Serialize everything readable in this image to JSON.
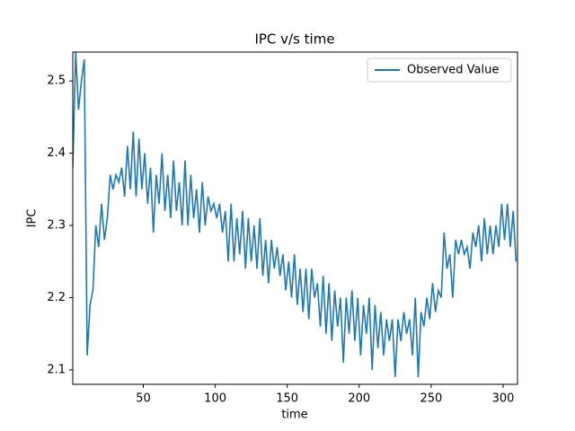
{
  "chart_data": {
    "type": "line",
    "title": "IPC v/s time",
    "x_label": "time",
    "y_label": "IPC",
    "x": [
      1,
      3,
      5,
      7,
      9,
      11,
      13,
      15,
      17,
      19,
      21,
      23,
      25,
      27,
      29,
      31,
      33,
      35,
      37,
      39,
      41,
      43,
      45,
      47,
      49,
      51,
      53,
      55,
      57,
      59,
      61,
      63,
      65,
      67,
      69,
      71,
      73,
      75,
      77,
      79,
      81,
      83,
      85,
      87,
      89,
      91,
      93,
      95,
      97,
      99,
      101,
      103,
      105,
      107,
      109,
      111,
      113,
      115,
      117,
      119,
      121,
      123,
      125,
      127,
      129,
      131,
      133,
      135,
      137,
      139,
      141,
      143,
      145,
      147,
      149,
      151,
      153,
      155,
      157,
      159,
      161,
      163,
      165,
      167,
      169,
      171,
      173,
      175,
      177,
      179,
      181,
      183,
      185,
      187,
      189,
      191,
      193,
      195,
      197,
      199,
      201,
      203,
      205,
      207,
      209,
      211,
      213,
      215,
      217,
      219,
      221,
      223,
      225,
      227,
      229,
      231,
      233,
      235,
      237,
      239,
      241,
      243,
      245,
      247,
      249,
      251,
      253,
      255,
      257,
      259,
      261,
      263,
      265,
      267,
      269,
      271,
      273,
      275,
      277,
      279,
      281,
      283,
      285,
      287,
      289,
      291,
      293,
      295,
      297,
      299,
      301,
      303,
      305,
      307,
      309
    ],
    "series": [
      {
        "name": "Observed Value",
        "color": "#1f77b4",
        "values": [
          2.38,
          2.54,
          2.46,
          2.5,
          2.53,
          2.12,
          2.19,
          2.21,
          2.3,
          2.27,
          2.33,
          2.28,
          2.31,
          2.37,
          2.35,
          2.37,
          2.36,
          2.38,
          2.34,
          2.41,
          2.35,
          2.43,
          2.34,
          2.42,
          2.35,
          2.4,
          2.33,
          2.38,
          2.29,
          2.37,
          2.33,
          2.4,
          2.32,
          2.37,
          2.31,
          2.39,
          2.32,
          2.36,
          2.3,
          2.39,
          2.3,
          2.37,
          2.31,
          2.35,
          2.29,
          2.36,
          2.3,
          2.34,
          2.32,
          2.33,
          2.31,
          2.33,
          2.29,
          2.32,
          2.25,
          2.33,
          2.25,
          2.31,
          2.26,
          2.32,
          2.24,
          2.31,
          2.25,
          2.3,
          2.24,
          2.31,
          2.23,
          2.28,
          2.22,
          2.28,
          2.24,
          2.27,
          2.23,
          2.26,
          2.21,
          2.25,
          2.2,
          2.26,
          2.19,
          2.24,
          2.18,
          2.24,
          2.17,
          2.24,
          2.2,
          2.22,
          2.16,
          2.23,
          2.15,
          2.22,
          2.14,
          2.21,
          2.16,
          2.2,
          2.11,
          2.2,
          2.15,
          2.21,
          2.14,
          2.2,
          2.12,
          2.19,
          2.15,
          2.2,
          2.1,
          2.19,
          2.13,
          2.18,
          2.12,
          2.17,
          2.14,
          2.17,
          2.09,
          2.17,
          2.14,
          2.18,
          2.15,
          2.17,
          2.12,
          2.2,
          2.09,
          2.18,
          2.16,
          2.2,
          2.17,
          2.22,
          2.18,
          2.21,
          2.2,
          2.29,
          2.24,
          2.26,
          2.2,
          2.28,
          2.26,
          2.28,
          2.26,
          2.27,
          2.24,
          2.29,
          2.27,
          2.3,
          2.25,
          2.31,
          2.26,
          2.3,
          2.26,
          2.3,
          2.27,
          2.33,
          2.28,
          2.33,
          2.27,
          2.32,
          2.25
        ]
      }
    ],
    "xlim": [
      1,
      310
    ],
    "ylim": [
      2.08,
      2.54
    ],
    "xticks": [
      50,
      100,
      150,
      200,
      250,
      300
    ],
    "yticks": [
      2.1,
      2.2,
      2.3,
      2.4,
      2.5
    ],
    "legend": "upper right"
  }
}
